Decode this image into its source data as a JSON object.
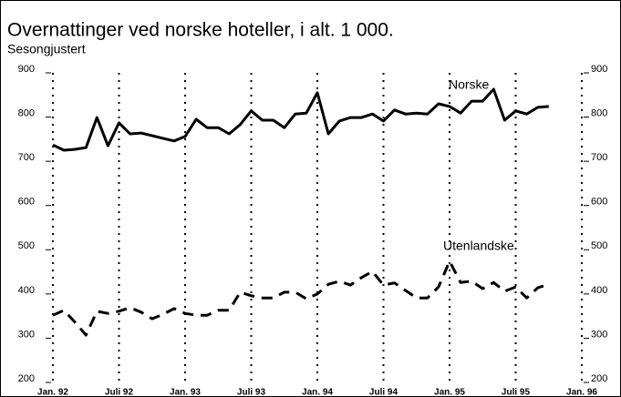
{
  "chart_data": {
    "type": "line",
    "title": "Overnattinger ved norske hoteller, i alt. 1 000.",
    "subtitle": "Sesongjustert",
    "categories": [
      "Jan. 92",
      null,
      null,
      null,
      null,
      null,
      "Juli 92",
      null,
      null,
      null,
      null,
      null,
      "Jan. 93",
      null,
      null,
      null,
      null,
      null,
      "Juli 93",
      null,
      null,
      null,
      null,
      null,
      "Jan. 94",
      null,
      null,
      null,
      null,
      null,
      "Juli 94",
      null,
      null,
      null,
      null,
      null,
      "Jan. 95",
      null,
      null,
      null,
      null,
      null,
      "Juli 95",
      null,
      null,
      null,
      null,
      null,
      "Jan. 96"
    ],
    "series": [
      {
        "name": "Norske",
        "color": "#000000",
        "dash": false,
        "values": [
          737,
          725,
          727,
          731,
          799,
          735,
          787,
          762,
          764,
          758,
          752,
          746,
          756,
          795,
          776,
          776,
          762,
          783,
          814,
          793,
          793,
          776,
          807,
          809,
          855,
          762,
          791,
          799,
          799,
          807,
          791,
          816,
          807,
          809,
          807,
          830,
          824,
          809,
          836,
          836,
          863,
          793,
          814,
          807,
          822,
          824,
          null,
          null,
          null
        ]
      },
      {
        "name": "Utenlandske",
        "color": "#000000",
        "dash": true,
        "values": [
          352,
          363,
          336,
          307,
          361,
          356,
          361,
          369,
          359,
          344,
          354,
          367,
          356,
          352,
          352,
          363,
          363,
          404,
          396,
          391,
          391,
          404,
          404,
          389,
          400,
          422,
          429,
          420,
          437,
          451,
          420,
          425,
          408,
          391,
          391,
          416,
          474,
          426,
          429,
          412,
          426,
          406,
          416,
          391,
          414,
          422,
          null,
          null,
          null
        ]
      }
    ],
    "ylim": [
      200,
      900
    ],
    "yticks": [
      200,
      300,
      400,
      500,
      600,
      700,
      800,
      900
    ],
    "y2lim": [
      200,
      900
    ],
    "y2ticks": [
      200,
      300,
      400,
      500,
      600,
      700,
      800,
      900
    ],
    "grid": true
  }
}
